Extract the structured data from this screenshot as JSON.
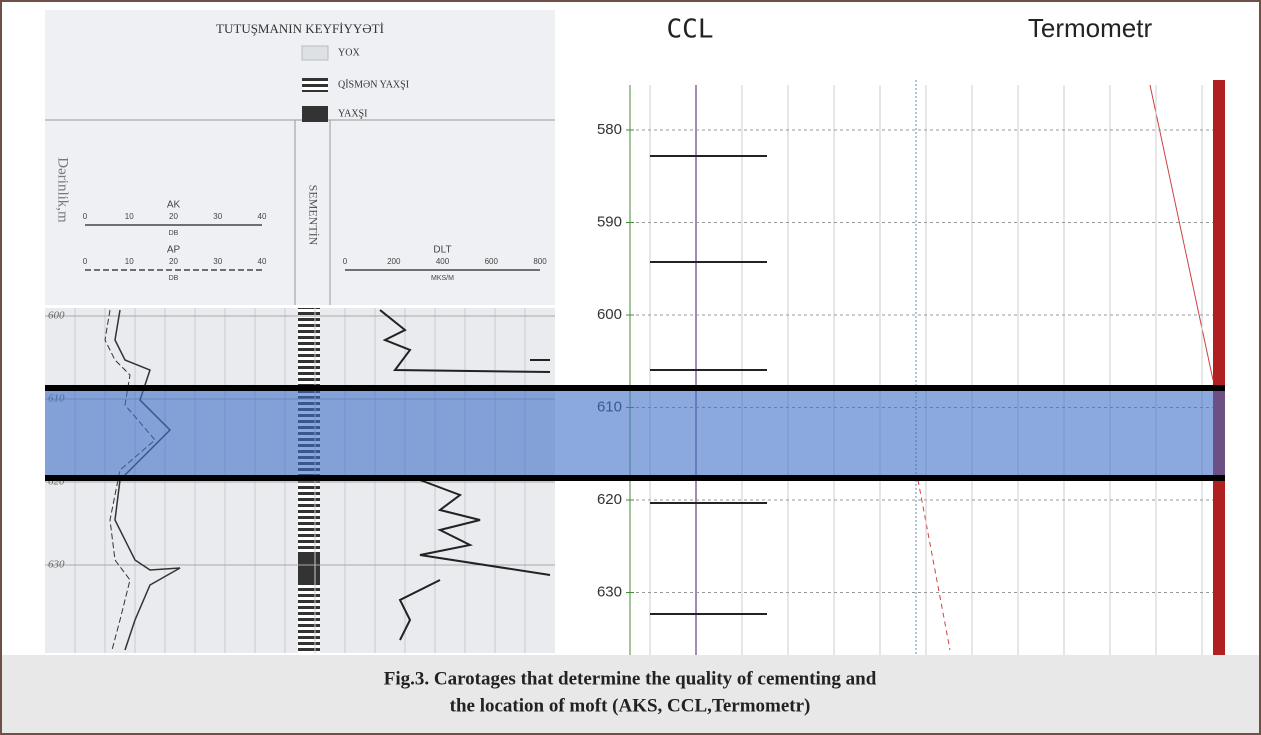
{
  "left_panel": {
    "title": "TUTUŞMANIN KEYFİYYƏTİ",
    "legend": [
      "YOX",
      "QİSMƏN YAXŞI",
      "YAXŞI"
    ],
    "depth_label": "Dərinlik,m",
    "ak": {
      "label": "AK",
      "unit": "DB",
      "ticks": [
        0,
        10,
        20,
        30,
        40
      ]
    },
    "ap": {
      "label": "AP",
      "unit": "DB",
      "ticks": [
        0,
        10,
        20,
        30,
        40
      ]
    },
    "cement_label": "SEMENTİN",
    "dlt": {
      "label": "DLT",
      "unit": "MKS/M",
      "ticks": [
        0,
        200,
        400,
        600,
        800
      ]
    },
    "depths": [
      600,
      610,
      620,
      630
    ]
  },
  "right_panel": {
    "ccl_title": "CCL",
    "thermo_title": "Termometr",
    "depths": [
      580,
      590,
      600,
      610,
      620,
      630
    ]
  },
  "caption": [
    "Fig.3. Carotages that determine the quality of cementing and",
    "the location of moft  (AKS, CCL,Termometr)"
  ]
}
